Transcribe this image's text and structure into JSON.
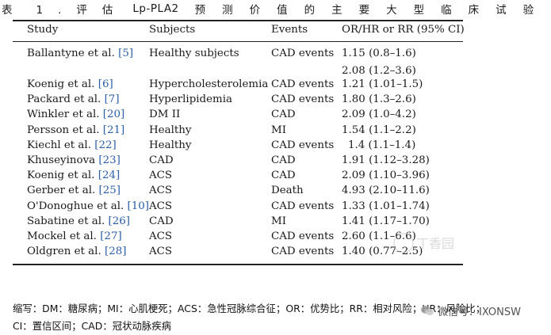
{
  "caption": {
    "prefix": "表",
    "spaced": "1.评估",
    "keyword": "Lp-PLA2",
    "rest": "预测价值的主要大型临床试验"
  },
  "table": {
    "headers": [
      "Study",
      "Subjects",
      "Events",
      "OR/HR or RR (95% CI)"
    ],
    "rows": [
      {
        "author": "Ballantyne et al.",
        "ref": "[5]",
        "subjects": "Healthy subjects",
        "events": "CAD events",
        "value": "1.15 (0.8–1.6)"
      },
      {
        "author": "",
        "ref": "",
        "subjects": "",
        "events": "",
        "value": "2.08 (1.2–3.6)"
      },
      {
        "author": "Koenig et al.",
        "ref": "[6]",
        "subjects": "Hypercholesterolemia",
        "events": "CAD events",
        "value": "1.21 (1.01–1.5)"
      },
      {
        "author": "Packard et al.",
        "ref": "[7]",
        "subjects": "Hyperlipidemia",
        "events": "CAD events",
        "value": "1.80 (1.3–2.6)"
      },
      {
        "author": "Winkler et al.",
        "ref": "[20]",
        "subjects": "DM II",
        "events": "CAD",
        "value": "2.09 (1.0–4.2)"
      },
      {
        "author": "Persson et al.",
        "ref": "[21]",
        "subjects": "Healthy",
        "events": "MI",
        "value": "1.54 (1.1–2.2)"
      },
      {
        "author": "Kiechl et al.",
        "ref": "[22]",
        "subjects": "Healthy",
        "events": "CAD events",
        "value": "1.4 (1.1–1.4)"
      },
      {
        "author": "Khuseyinova",
        "ref": "[23]",
        "subjects": "CAD",
        "events": "CAD",
        "value": "1.91 (1.12–3.28)"
      },
      {
        "author": "Koenig et al.",
        "ref": "[24]",
        "subjects": "ACS",
        "events": "CAD",
        "value": "2.09 (1.10–3.96)"
      },
      {
        "author": "Gerber et al.",
        "ref": "[25]",
        "subjects": "ACS",
        "events": "Death",
        "value": "4.93 (2.10–11.6)"
      },
      {
        "author": "O'Donoghue et al.",
        "ref": "[10]",
        "subjects": "ACS",
        "events": "CAD events",
        "value": "1.33 (1.01–1.74)"
      },
      {
        "author": "Sabatine et al.",
        "ref": "[26]",
        "subjects": "CAD",
        "events": "MI",
        "value": "1.41 (1.17–1.70)"
      },
      {
        "author": "Mockel et al.",
        "ref": "[27]",
        "subjects": "ACS",
        "events": "CAD events",
        "value": "2.60 (1.1–6.6)"
      },
      {
        "author": "Oldgren et al.",
        "ref": "[28]",
        "subjects": "ACS",
        "events": "CAD events",
        "value": "1.40 (0.77–2.5)"
      }
    ]
  },
  "footnote": {
    "line1": "缩写：DM：糖尿病；MI：心肌梗死；ACS：急性冠脉综合征；OR：优势比；RR：相对风险；HR：风险比；",
    "line2": "CI：置信区间；CAD：冠状动脉疾病"
  },
  "watermark": {
    "logo_text": "丁香园",
    "wechat_text": "微信号：IXONSW",
    "wechat_icon": "wechat-icon"
  },
  "colors": {
    "reference_link": "#2a5da8",
    "rule": "#222222"
  }
}
